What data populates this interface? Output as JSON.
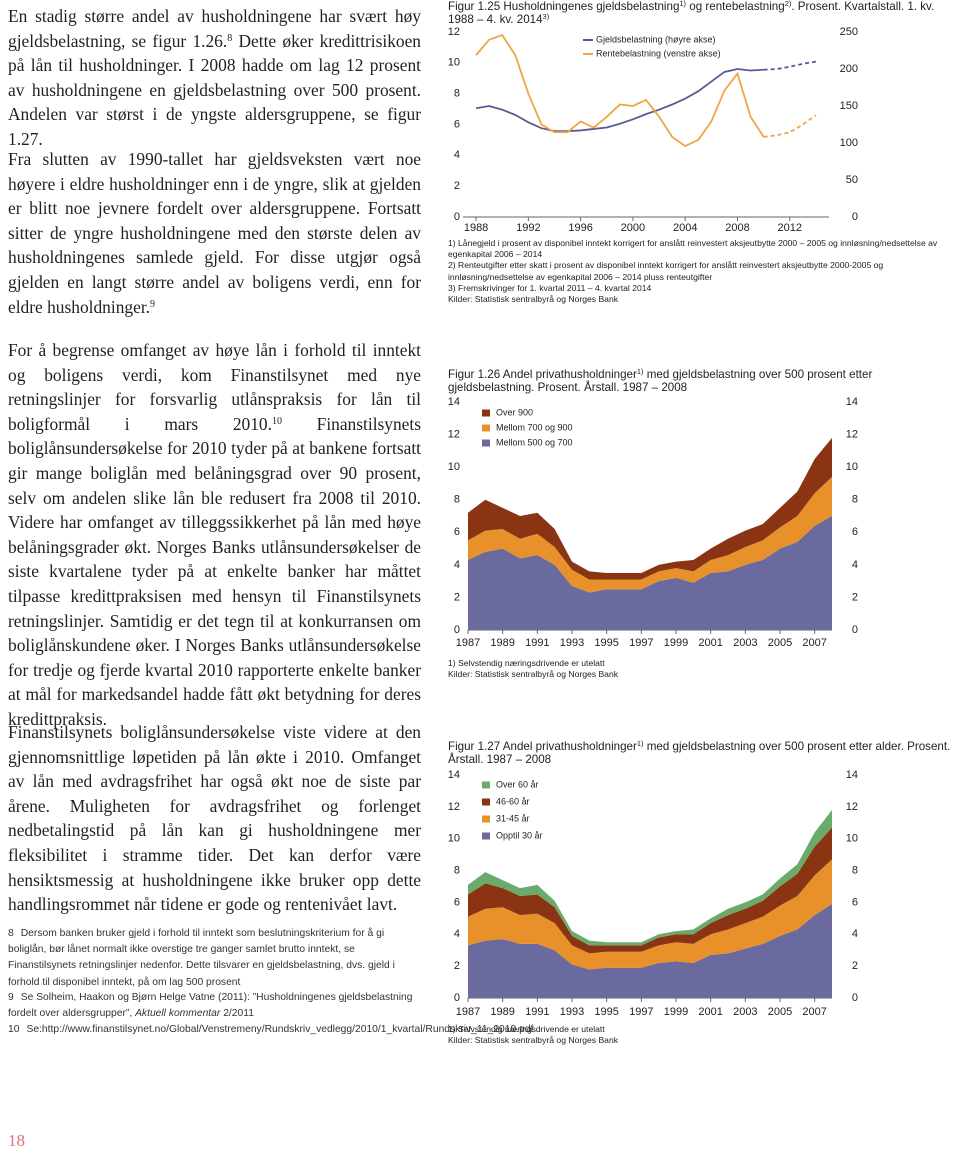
{
  "document": {
    "paragraphs": [
      [
        {
          "t": "En stadig større andel av husholdningene har svært høy gjeldsbelastning, se figur 1.26."
        },
        {
          "sup": "8"
        },
        {
          "t": " Dette øker kredittrisikoen på lån til husholdninger. I 2008 hadde om lag 12 prosent av husholdningene en gjeldsbelastning over 500 prosent. Andelen var størst i de yngste aldersgruppene, se figur 1.27."
        }
      ],
      [
        {
          "t": "Fra slutten av 1990-tallet har gjeldsveksten vært noe høyere i eldre husholdninger enn i de yngre, slik at gjelden er blitt noe jevnere fordelt over aldersgruppene. Fortsatt sitter de yngre husholdningene med den største delen av husholdningenes samlede gjeld. For disse utgjør også gjelden en langt større andel av boligens verdi, enn for eldre husholdninger."
        },
        {
          "sup": "9"
        }
      ],
      [
        {
          "t": "For å begrense omfanget av høye lån i forhold til inntekt og boligens verdi, kom Finanstilsynet med nye retningslinjer for forsvarlig utlånspraksis for lån til boligformål i mars 2010."
        },
        {
          "sup": "10"
        },
        {
          "t": " Finanstilsynets boliglånsundersøkelse for 2010 tyder på at bankene fortsatt gir mange boliglån med belåningsgrad over 90 prosent, selv om andelen slike lån ble redusert fra 2008 til 2010. Videre har omfanget av tilleggssikkerhet på lån med høye belåningsgrader økt. Norges Banks utlånsundersøkelser de siste kvartalene tyder på at enkelte banker har måttet tilpasse kredittpraksisen med hensyn til Finanstilsynets retningslinjer. Samtidig er det tegn til at konkurransen om boliglånskundene øker. I Norges Banks utlånsundersøkelse for tredje og fjerde kvartal 2010 rapporterte enkelte banker at mål for markedsandel hadde fått økt betydning for deres kredittpraksis."
        }
      ],
      [
        {
          "t": "Finanstilsynets boliglånsundersøkelse viste videre at den gjennomsnittlige løpetiden på lån økte i 2010. Omfanget av lån med avdragsfrihet har også økt noe de siste par årene. Muligheten for avdragsfrihet og forlenget nedbetalingstid på lån kan gi husholdningene mer fleksibilitet i stramme tider. Det kan derfor være hensiktsmessig at husholdningene ikke bruker opp dette handlingsrommet når tidene er gode og rentenivået lavt."
        }
      ]
    ],
    "footnotes": [
      [
        {
          "num": "8"
        },
        {
          "t": "Dersom banken bruker gjeld i forhold til inntekt som beslutningskriterium for å gi boliglån, bør lånet normalt ikke overstige tre ganger samlet brutto inntekt, se Finanstilsynets retningslinjer nedenfor. Dette tilsvarer en gjeldsbelastning, dvs. gjeld i forhold til disponibel inntekt, på om lag 500 prosent"
        }
      ],
      [
        {
          "num": "9"
        },
        {
          "t": "Se Solheim, Haakon og Bjørn Helge Vatne (2011): ”Husholdningenes gjeldsbelastning fordelt over aldersgrupper”, "
        },
        {
          "i": "Aktuell kommentar"
        },
        {
          "t": " 2/2011"
        }
      ],
      [
        {
          "num": "10"
        },
        {
          "t": "Se:http://www.finanstilsynet.no/Global/Venstremeny/Rundskriv_vedlegg/2010/1_kvartal/Rundskriv_11_2010.pdf"
        }
      ]
    ],
    "page_number": "18"
  },
  "chart_data": [
    {
      "type": "line",
      "title_parts": [
        {
          "t": "Figur 1.25 Husholdningenes gjeldsbelastning"
        },
        {
          "sup": "1)"
        },
        {
          "t": " og rentebelastning"
        },
        {
          "sup": "2)"
        },
        {
          "t": ". Prosent. Kvartalstall. 1. kv. 1988 – 4. kv. 2014"
        },
        {
          "sup": "3)"
        }
      ],
      "x": [
        1988,
        1989,
        1990,
        1991,
        1992,
        1993,
        1994,
        1995,
        1996,
        1997,
        1998,
        1999,
        2000,
        2001,
        2002,
        2003,
        2004,
        2005,
        2006,
        2007,
        2008,
        2009,
        2010,
        2011,
        2012,
        2013,
        2014
      ],
      "xlim": [
        1987,
        2015
      ],
      "xticks": [
        1988,
        1992,
        1996,
        2000,
        2004,
        2008,
        2012
      ],
      "ylim": [
        0,
        12
      ],
      "yticks": [
        0,
        2,
        4,
        6,
        8,
        10,
        12
      ],
      "y2lim": [
        0,
        250
      ],
      "y2ticks": [
        0,
        50,
        100,
        150,
        200,
        250
      ],
      "forecast_from": 2011,
      "series": [
        {
          "name": "Gjeldsbelastning (høyre akse)",
          "color": "#5a5a92",
          "axis": "y2",
          "values": [
            147,
            150,
            145,
            138,
            128,
            120,
            116,
            116,
            117,
            119,
            121,
            126,
            132,
            139,
            145,
            152,
            160,
            170,
            183,
            196,
            200,
            198,
            199,
            200,
            203,
            207,
            210
          ]
        },
        {
          "name": "Rentebelastning (venstre akse)",
          "color": "#f0a444",
          "values": [
            10.5,
            11.5,
            11.8,
            10.5,
            8,
            6,
            5.5,
            5.5,
            6.2,
            5.8,
            6.5,
            7.3,
            7.2,
            7.6,
            6.5,
            5.2,
            4.6,
            5,
            6.2,
            8.2,
            9.3,
            6.5,
            5.2,
            5.3,
            5.5,
            6,
            6.6
          ]
        }
      ],
      "notes": [
        "1) Lånegjeld i prosent av disponibel inntekt korrigert for anslått reinvestert aksjeutbytte 2000 – 2005 og innløsning/nedsettelse av egenkapital 2006 – 2014",
        "2) Renteutgifter etter skatt i prosent av disponibel inntekt korrigert for anslått reinvestert aksjeutbytte 2000-2005 og innløsning/nedsettelse av egenkapital 2006 – 2014 pluss renteutgifter",
        "3) Fremskrivinger for 1. kvartal 2011 – 4. kvartal 2014",
        "Kilder: Statistisk sentralbyrå og Norges Bank"
      ]
    },
    {
      "type": "area",
      "stacked": true,
      "title_parts": [
        {
          "t": "Figur 1.26 Andel privathusholdninger"
        },
        {
          "sup": "1)"
        },
        {
          "t": " med gjeldsbelastning over 500 prosent etter gjeldsbelastning. Prosent. Årstall. 1987 – 2008"
        }
      ],
      "x": [
        1987,
        1988,
        1989,
        1990,
        1991,
        1992,
        1993,
        1994,
        1995,
        1996,
        1997,
        1998,
        1999,
        2000,
        2001,
        2002,
        2003,
        2004,
        2005,
        2006,
        2007,
        2008
      ],
      "xlim": [
        1987,
        2008
      ],
      "xticks": [
        1987,
        1989,
        1991,
        1993,
        1995,
        1997,
        1999,
        2001,
        2003,
        2005,
        2007
      ],
      "ylim": [
        0,
        14
      ],
      "yticks": [
        0,
        2,
        4,
        6,
        8,
        10,
        12,
        14
      ],
      "y2lim": [
        0,
        14
      ],
      "y2ticks": [
        0,
        2,
        4,
        6,
        8,
        10,
        12,
        14
      ],
      "series": [
        {
          "name": "Mellom 500 og 700",
          "color": "#6a6a9f",
          "values": [
            4.3,
            4.8,
            5,
            4.4,
            4.6,
            4,
            2.7,
            2.3,
            2.5,
            2.5,
            2.5,
            3,
            3.2,
            2.9,
            3.5,
            3.6,
            4,
            4.3,
            5,
            5.4,
            6.4,
            7
          ]
        },
        {
          "name": "Mellom 700 og 900",
          "color": "#e8912a",
          "values": [
            1.2,
            1.3,
            1.2,
            1.2,
            1.3,
            1.1,
            1,
            0.8,
            0.6,
            0.6,
            0.6,
            0.6,
            0.6,
            0.7,
            0.8,
            1,
            1.1,
            1.2,
            1.3,
            1.6,
            2,
            2.4
          ]
        },
        {
          "name": "Over 900",
          "color": "#8a3414",
          "values": [
            1.7,
            1.9,
            1.3,
            1.4,
            1.3,
            1.1,
            0.5,
            0.5,
            0.4,
            0.4,
            0.4,
            0.4,
            0.4,
            0.7,
            0.7,
            1,
            1,
            1,
            1.2,
            1.5,
            2.1,
            2.4
          ]
        }
      ],
      "notes": [
        "1) Selvstendig næringsdrivende er utelatt",
        "Kilder: Statistisk sentralbyrå og Norges Bank"
      ]
    },
    {
      "type": "area",
      "stacked": true,
      "title_parts": [
        {
          "t": "Figur 1.27 Andel privathusholdninger"
        },
        {
          "sup": "1)"
        },
        {
          "t": " med gjeldsbelastning over 500 prosent etter alder. Prosent. Årstall. 1987 – 2008"
        }
      ],
      "x": [
        1987,
        1988,
        1989,
        1990,
        1991,
        1992,
        1993,
        1994,
        1995,
        1996,
        1997,
        1998,
        1999,
        2000,
        2001,
        2002,
        2003,
        2004,
        2005,
        2006,
        2007,
        2008
      ],
      "xlim": [
        1987,
        2008
      ],
      "xticks": [
        1987,
        1989,
        1991,
        1993,
        1995,
        1997,
        1999,
        2001,
        2003,
        2005,
        2007
      ],
      "ylim": [
        0,
        14
      ],
      "yticks": [
        0,
        2,
        4,
        6,
        8,
        10,
        12,
        14
      ],
      "y2lim": [
        0,
        14
      ],
      "y2ticks": [
        0,
        2,
        4,
        6,
        8,
        10,
        12,
        14
      ],
      "series": [
        {
          "name": "Opptil 30 år",
          "color": "#6a6a9f",
          "values": [
            3.3,
            3.6,
            3.7,
            3.4,
            3.4,
            3,
            2.1,
            1.8,
            1.9,
            1.9,
            1.9,
            2.2,
            2.3,
            2.2,
            2.7,
            2.8,
            3.1,
            3.4,
            3.9,
            4.3,
            5.2,
            5.9
          ]
        },
        {
          "name": "31-45 år",
          "color": "#e8912a",
          "values": [
            1.8,
            2,
            2,
            1.8,
            1.9,
            1.7,
            1.2,
            1,
            1,
            1,
            1,
            1.1,
            1.2,
            1.2,
            1.3,
            1.5,
            1.6,
            1.7,
            1.9,
            2.1,
            2.5,
            2.8
          ]
        },
        {
          "name": "46-60 år",
          "color": "#8a3414",
          "values": [
            1.4,
            1.6,
            1.2,
            1.2,
            1.2,
            1,
            0.6,
            0.5,
            0.4,
            0.4,
            0.4,
            0.5,
            0.5,
            0.6,
            0.7,
            0.9,
            0.9,
            1,
            1.2,
            1.4,
            1.8,
            2
          ]
        },
        {
          "name": "Over 60 år",
          "color": "#6aaa6a",
          "values": [
            0.6,
            0.7,
            0.5,
            0.5,
            0.6,
            0.4,
            0.3,
            0.3,
            0.2,
            0.2,
            0.2,
            0.2,
            0.2,
            0.3,
            0.3,
            0.4,
            0.4,
            0.4,
            0.5,
            0.6,
            0.9,
            1.1
          ]
        }
      ],
      "notes": [
        "1) Selvstendig næringsdrivende er utelatt",
        "Kilder: Statistisk sentralbyrå og Norges Bank"
      ]
    }
  ]
}
